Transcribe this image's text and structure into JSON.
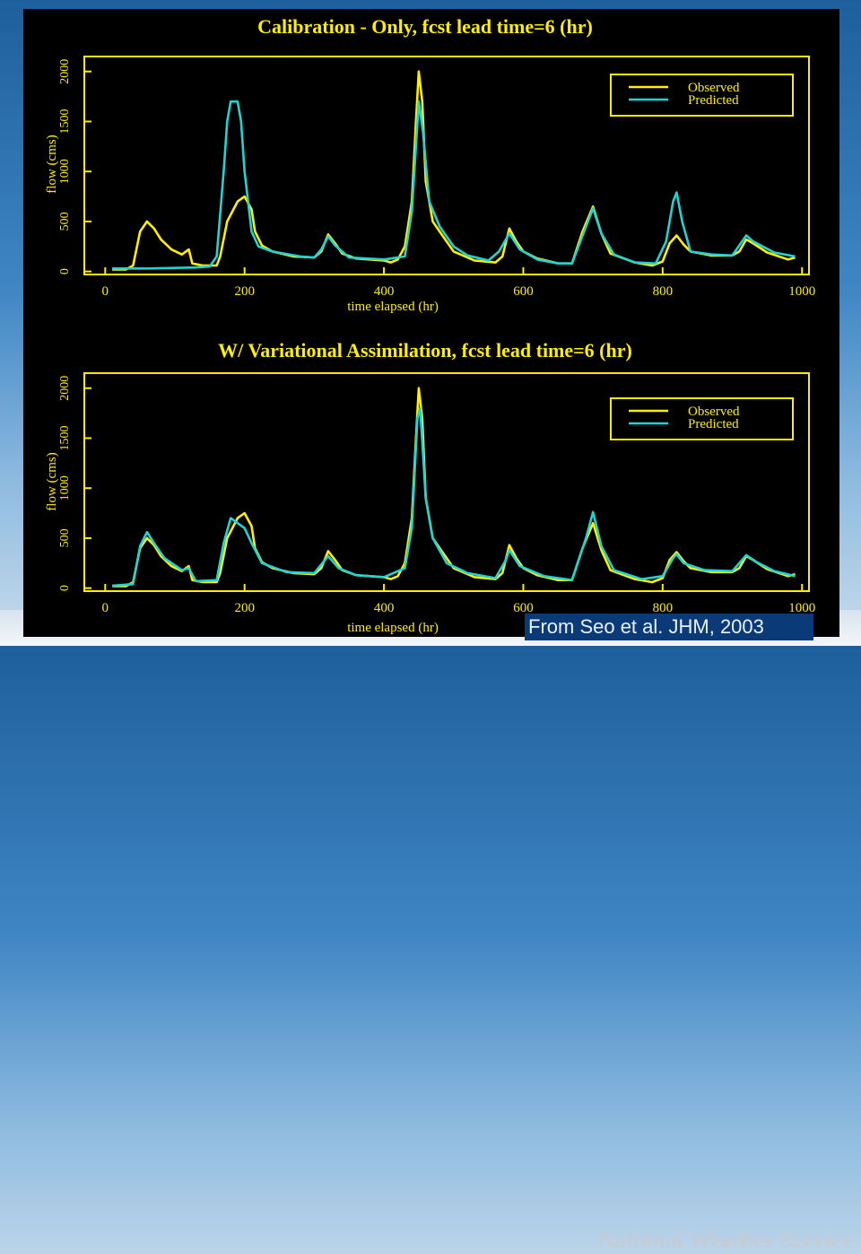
{
  "background": {
    "watermark": "National Weather Service"
  },
  "citation": "From Seo et al. JHM, 2003",
  "colors": {
    "axis": "#ffee00",
    "observed": "#ffee00",
    "predicted": "#22d3d3",
    "panel": "#000000"
  },
  "chart_data": [
    {
      "type": "line",
      "title": "Calibration - Only, fcst lead time=6 (hr)",
      "xlabel": "time elapsed (hr)",
      "ylabel": "flow (cms)",
      "xlim": [
        -30,
        1010
      ],
      "ylim": [
        -30,
        2150
      ],
      "xticks": [
        0,
        200,
        400,
        600,
        800,
        1000
      ],
      "yticks": [
        0,
        500,
        1000,
        1500,
        2000
      ],
      "legend": {
        "position": "top-right",
        "entries": [
          "Observed",
          "Predicted"
        ]
      },
      "series": [
        {
          "name": "Observed",
          "color": "#ffee00",
          "points": [
            [
              10,
              20
            ],
            [
              30,
              20
            ],
            [
              40,
              60
            ],
            [
              50,
              400
            ],
            [
              60,
              500
            ],
            [
              70,
              430
            ],
            [
              80,
              320
            ],
            [
              95,
              220
            ],
            [
              110,
              170
            ],
            [
              120,
              220
            ],
            [
              125,
              80
            ],
            [
              140,
              60
            ],
            [
              160,
              60
            ],
            [
              165,
              150
            ],
            [
              175,
              500
            ],
            [
              190,
              700
            ],
            [
              200,
              750
            ],
            [
              210,
              620
            ],
            [
              215,
              400
            ],
            [
              225,
              260
            ],
            [
              240,
              200
            ],
            [
              270,
              150
            ],
            [
              300,
              140
            ],
            [
              310,
              200
            ],
            [
              320,
              370
            ],
            [
              330,
              280
            ],
            [
              340,
              180
            ],
            [
              360,
              130
            ],
            [
              400,
              110
            ],
            [
              410,
              90
            ],
            [
              420,
              120
            ],
            [
              430,
              250
            ],
            [
              440,
              700
            ],
            [
              446,
              1500
            ],
            [
              450,
              2000
            ],
            [
              455,
              1700
            ],
            [
              460,
              900
            ],
            [
              470,
              500
            ],
            [
              480,
              400
            ],
            [
              490,
              300
            ],
            [
              500,
              200
            ],
            [
              530,
              110
            ],
            [
              560,
              90
            ],
            [
              570,
              150
            ],
            [
              580,
              430
            ],
            [
              590,
              300
            ],
            [
              600,
              200
            ],
            [
              620,
              130
            ],
            [
              650,
              80
            ],
            [
              670,
              80
            ],
            [
              685,
              400
            ],
            [
              700,
              650
            ],
            [
              712,
              380
            ],
            [
              725,
              180
            ],
            [
              760,
              90
            ],
            [
              785,
              60
            ],
            [
              800,
              100
            ],
            [
              810,
              280
            ],
            [
              820,
              360
            ],
            [
              830,
              270
            ],
            [
              840,
              200
            ],
            [
              870,
              160
            ],
            [
              900,
              160
            ],
            [
              910,
              200
            ],
            [
              920,
              320
            ],
            [
              930,
              280
            ],
            [
              950,
              190
            ],
            [
              980,
              120
            ],
            [
              990,
              140
            ]
          ]
        },
        {
          "name": "Predicted",
          "color": "#22d3d3",
          "points": [
            [
              10,
              30
            ],
            [
              60,
              30
            ],
            [
              130,
              40
            ],
            [
              150,
              50
            ],
            [
              160,
              150
            ],
            [
              170,
              1000
            ],
            [
              175,
              1500
            ],
            [
              180,
              1700
            ],
            [
              190,
              1700
            ],
            [
              195,
              1500
            ],
            [
              200,
              1000
            ],
            [
              210,
              400
            ],
            [
              220,
              250
            ],
            [
              240,
              200
            ],
            [
              280,
              150
            ],
            [
              300,
              140
            ],
            [
              310,
              220
            ],
            [
              320,
              350
            ],
            [
              330,
              260
            ],
            [
              350,
              140
            ],
            [
              400,
              120
            ],
            [
              430,
              150
            ],
            [
              440,
              600
            ],
            [
              450,
              1700
            ],
            [
              456,
              1400
            ],
            [
              465,
              700
            ],
            [
              480,
              450
            ],
            [
              500,
              250
            ],
            [
              520,
              160
            ],
            [
              550,
              110
            ],
            [
              565,
              200
            ],
            [
              580,
              380
            ],
            [
              595,
              220
            ],
            [
              620,
              120
            ],
            [
              650,
              80
            ],
            [
              670,
              80
            ],
            [
              690,
              450
            ],
            [
              700,
              630
            ],
            [
              712,
              380
            ],
            [
              730,
              170
            ],
            [
              760,
              90
            ],
            [
              790,
              80
            ],
            [
              805,
              300
            ],
            [
              815,
              700
            ],
            [
              820,
              790
            ],
            [
              828,
              500
            ],
            [
              840,
              200
            ],
            [
              870,
              170
            ],
            [
              900,
              160
            ],
            [
              920,
              360
            ],
            [
              930,
              300
            ],
            [
              960,
              190
            ],
            [
              990,
              150
            ]
          ]
        }
      ]
    },
    {
      "type": "line",
      "title": "W/ Variational Assimilation, fcst lead time=6 (hr)",
      "xlabel": "time elapsed (hr)",
      "ylabel": "flow (cms)",
      "xlim": [
        -30,
        1010
      ],
      "ylim": [
        -30,
        2150
      ],
      "xticks": [
        0,
        200,
        400,
        600,
        800,
        1000
      ],
      "yticks": [
        0,
        500,
        1000,
        1500,
        2000
      ],
      "legend": {
        "position": "top-right",
        "entries": [
          "Observed",
          "Predicted"
        ]
      },
      "series": [
        {
          "name": "Observed",
          "color": "#ffee00",
          "points": [
            [
              10,
              20
            ],
            [
              30,
              20
            ],
            [
              40,
              60
            ],
            [
              50,
              400
            ],
            [
              60,
              500
            ],
            [
              70,
              430
            ],
            [
              80,
              320
            ],
            [
              95,
              220
            ],
            [
              110,
              170
            ],
            [
              120,
              220
            ],
            [
              125,
              80
            ],
            [
              140,
              60
            ],
            [
              160,
              60
            ],
            [
              165,
              150
            ],
            [
              175,
              500
            ],
            [
              190,
              700
            ],
            [
              200,
              750
            ],
            [
              210,
              620
            ],
            [
              215,
              400
            ],
            [
              225,
              260
            ],
            [
              240,
              200
            ],
            [
              270,
              150
            ],
            [
              300,
              140
            ],
            [
              310,
              200
            ],
            [
              320,
              370
            ],
            [
              330,
              280
            ],
            [
              340,
              180
            ],
            [
              360,
              130
            ],
            [
              400,
              110
            ],
            [
              410,
              90
            ],
            [
              420,
              120
            ],
            [
              430,
              250
            ],
            [
              440,
              700
            ],
            [
              446,
              1500
            ],
            [
              450,
              2000
            ],
            [
              455,
              1700
            ],
            [
              460,
              900
            ],
            [
              470,
              500
            ],
            [
              480,
              400
            ],
            [
              490,
              300
            ],
            [
              500,
              200
            ],
            [
              530,
              110
            ],
            [
              560,
              90
            ],
            [
              570,
              150
            ],
            [
              580,
              430
            ],
            [
              590,
              300
            ],
            [
              600,
              200
            ],
            [
              620,
              130
            ],
            [
              650,
              80
            ],
            [
              670,
              80
            ],
            [
              685,
              400
            ],
            [
              700,
              650
            ],
            [
              712,
              380
            ],
            [
              725,
              180
            ],
            [
              760,
              90
            ],
            [
              785,
              60
            ],
            [
              800,
              100
            ],
            [
              810,
              280
            ],
            [
              820,
              360
            ],
            [
              830,
              270
            ],
            [
              840,
              200
            ],
            [
              870,
              160
            ],
            [
              900,
              160
            ],
            [
              910,
              200
            ],
            [
              920,
              320
            ],
            [
              930,
              280
            ],
            [
              950,
              190
            ],
            [
              980,
              120
            ],
            [
              990,
              140
            ]
          ]
        },
        {
          "name": "Predicted",
          "color": "#22d3d3",
          "points": [
            [
              10,
              25
            ],
            [
              40,
              40
            ],
            [
              50,
              420
            ],
            [
              60,
              560
            ],
            [
              70,
              450
            ],
            [
              85,
              300
            ],
            [
              110,
              180
            ],
            [
              120,
              200
            ],
            [
              130,
              70
            ],
            [
              160,
              80
            ],
            [
              170,
              450
            ],
            [
              180,
              700
            ],
            [
              190,
              650
            ],
            [
              200,
              600
            ],
            [
              210,
              450
            ],
            [
              225,
              250
            ],
            [
              260,
              160
            ],
            [
              300,
              150
            ],
            [
              320,
              320
            ],
            [
              335,
              200
            ],
            [
              360,
              130
            ],
            [
              400,
              110
            ],
            [
              430,
              200
            ],
            [
              440,
              600
            ],
            [
              448,
              1700
            ],
            [
              452,
              1800
            ],
            [
              460,
              900
            ],
            [
              470,
              500
            ],
            [
              490,
              250
            ],
            [
              520,
              150
            ],
            [
              560,
              100
            ],
            [
              575,
              280
            ],
            [
              580,
              380
            ],
            [
              595,
              220
            ],
            [
              630,
              120
            ],
            [
              670,
              80
            ],
            [
              690,
              500
            ],
            [
              700,
              760
            ],
            [
              712,
              420
            ],
            [
              730,
              180
            ],
            [
              770,
              90
            ],
            [
              800,
              120
            ],
            [
              815,
              300
            ],
            [
              820,
              340
            ],
            [
              830,
              250
            ],
            [
              860,
              180
            ],
            [
              900,
              170
            ],
            [
              920,
              330
            ],
            [
              935,
              260
            ],
            [
              960,
              170
            ],
            [
              990,
              120
            ]
          ]
        }
      ]
    }
  ]
}
